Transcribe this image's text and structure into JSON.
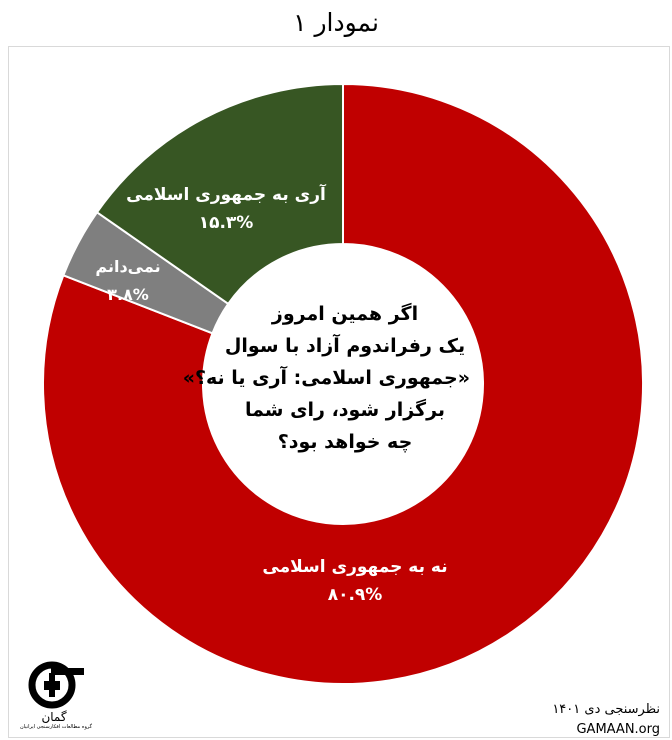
{
  "title": "نمودار ۱",
  "chart_data": {
    "type": "pie",
    "style": "donut",
    "question": [
      "اگر همین امروز",
      "یک رفراندوم آزاد با سوال",
      "«جمهوری اسلامی: آری یا نه؟»",
      "برگزار شود، رای شما",
      "چه خواهد بود؟"
    ],
    "slices": [
      {
        "name": "نه به جمهوری اسلامی",
        "value": 80.9,
        "display": "۸۰.۹%",
        "color": "#c00000"
      },
      {
        "name": "نمی‌دانم",
        "value": 3.8,
        "display": "۳.۸%",
        "color": "#7f7f7f"
      },
      {
        "name": "آری به جمهوری اسلامی",
        "value": 15.3,
        "display": "۱۵.۳%",
        "color": "#375623"
      }
    ],
    "legend": "none"
  },
  "logo": {
    "name": "گمان",
    "tagline": "گروه مطالعات افکارسنجی ایرانیان"
  },
  "source": {
    "survey": "نظرسنجی دی ۱۴۰۱",
    "site": "GAMAAN.org"
  }
}
